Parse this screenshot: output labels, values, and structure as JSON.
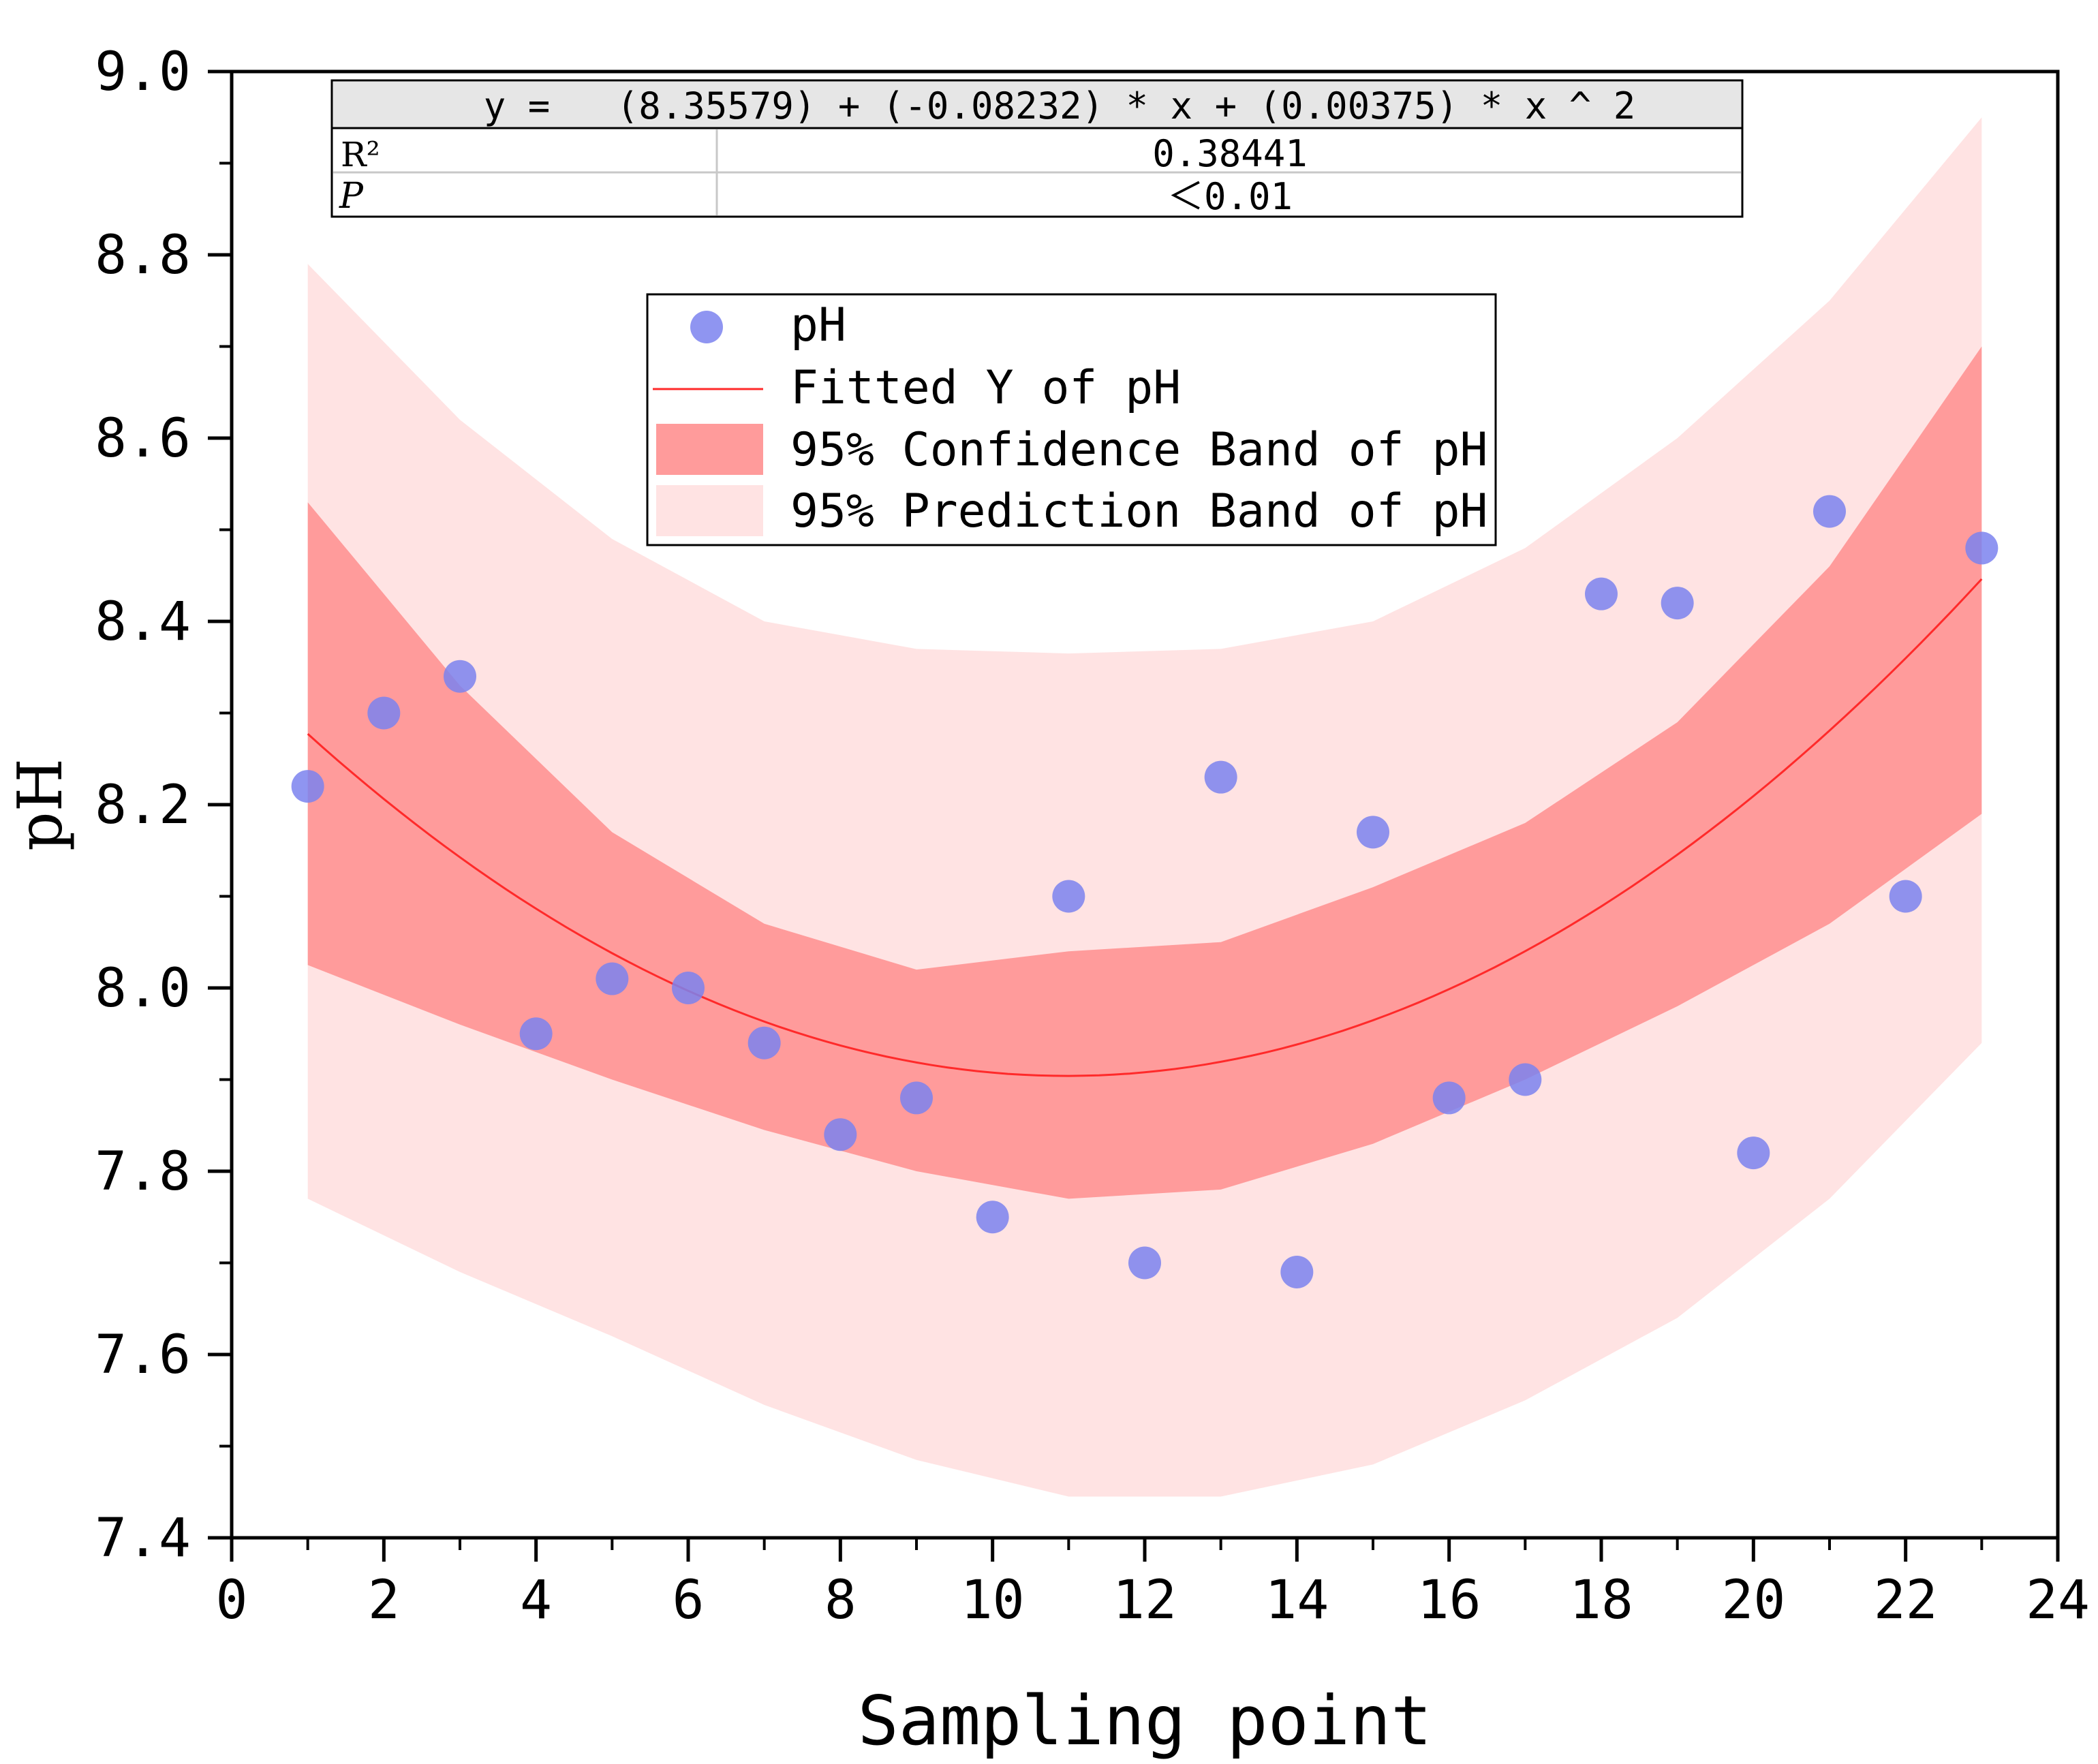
{
  "chart_data": {
    "type": "scatter",
    "title": "",
    "xlabel": "Sampling point",
    "ylabel": "pH",
    "xlim": [
      0,
      24
    ],
    "ylim": [
      7.4,
      9.0
    ],
    "x_ticks": [
      0,
      2,
      4,
      6,
      8,
      10,
      12,
      14,
      16,
      18,
      20,
      22,
      24
    ],
    "y_ticks": [
      7.4,
      7.6,
      7.8,
      8.0,
      8.2,
      8.4,
      8.6,
      8.8,
      9.0
    ],
    "x_tick_labels": [
      "0",
      "2",
      "4",
      "6",
      "8",
      "10",
      "12",
      "14",
      "16",
      "18",
      "20",
      "22",
      "24"
    ],
    "y_tick_labels": [
      "7.4",
      "7.6",
      "7.8",
      "8.0",
      "8.2",
      "8.4",
      "8.6",
      "8.8",
      "9.0"
    ],
    "grid": false,
    "series": [
      {
        "name": "pH",
        "kind": "scatter",
        "color": "#7b83ee",
        "x": [
          1,
          2,
          3,
          4,
          5,
          6,
          7,
          8,
          9,
          10,
          11,
          12,
          13,
          14,
          15,
          16,
          17,
          18,
          19,
          20,
          21,
          22,
          23
        ],
        "y": [
          8.22,
          8.3,
          8.34,
          7.95,
          8.01,
          8.0,
          7.94,
          7.84,
          7.88,
          7.75,
          8.1,
          7.7,
          8.23,
          7.69,
          8.17,
          7.88,
          7.9,
          8.43,
          8.42,
          7.82,
          8.52,
          8.1,
          8.48
        ]
      },
      {
        "name": "Fitted Y of pH",
        "kind": "line",
        "color": "#ff2a2a",
        "coefficients": [
          8.35579,
          -0.08232,
          0.00375
        ],
        "x_range": [
          1,
          23
        ]
      },
      {
        "name": "95% Confidence Band of pH",
        "kind": "band",
        "color": "#ff9b9b",
        "x": [
          1,
          3,
          5,
          7,
          9,
          11,
          13,
          15,
          17,
          19,
          21,
          23
        ],
        "lower": [
          8.025,
          7.96,
          7.9,
          7.845,
          7.8,
          7.77,
          7.78,
          7.83,
          7.9,
          7.98,
          8.07,
          8.19
        ],
        "upper": [
          8.53,
          8.33,
          8.17,
          8.07,
          8.02,
          8.04,
          8.05,
          8.11,
          8.18,
          8.29,
          8.46,
          8.7
        ]
      },
      {
        "name": "95% Prediction Band of pH",
        "kind": "band",
        "color": "#ffe3e3",
        "x": [
          1,
          3,
          5,
          7,
          9,
          11,
          13,
          15,
          17,
          19,
          21,
          23
        ],
        "lower": [
          7.77,
          7.69,
          7.62,
          7.545,
          7.485,
          7.445,
          7.445,
          7.48,
          7.55,
          7.64,
          7.77,
          7.94
        ],
        "upper": [
          8.79,
          8.62,
          8.49,
          8.4,
          8.37,
          8.365,
          8.37,
          8.4,
          8.48,
          8.6,
          8.75,
          8.95
        ]
      }
    ],
    "legend": {
      "position": "top-center",
      "entries": [
        "pH",
        "Fitted Y of pH",
        "95% Confidence Band of pH",
        "95% Prediction Band of pH"
      ]
    },
    "stats_table": {
      "position": "top",
      "equation": "y =   (8.35579) + (-0.08232) * x + (0.00375) * x ^ 2",
      "rows": [
        {
          "label": "R²",
          "value": "0.38441"
        },
        {
          "label": "P",
          "value": "＜0.01"
        }
      ]
    }
  }
}
